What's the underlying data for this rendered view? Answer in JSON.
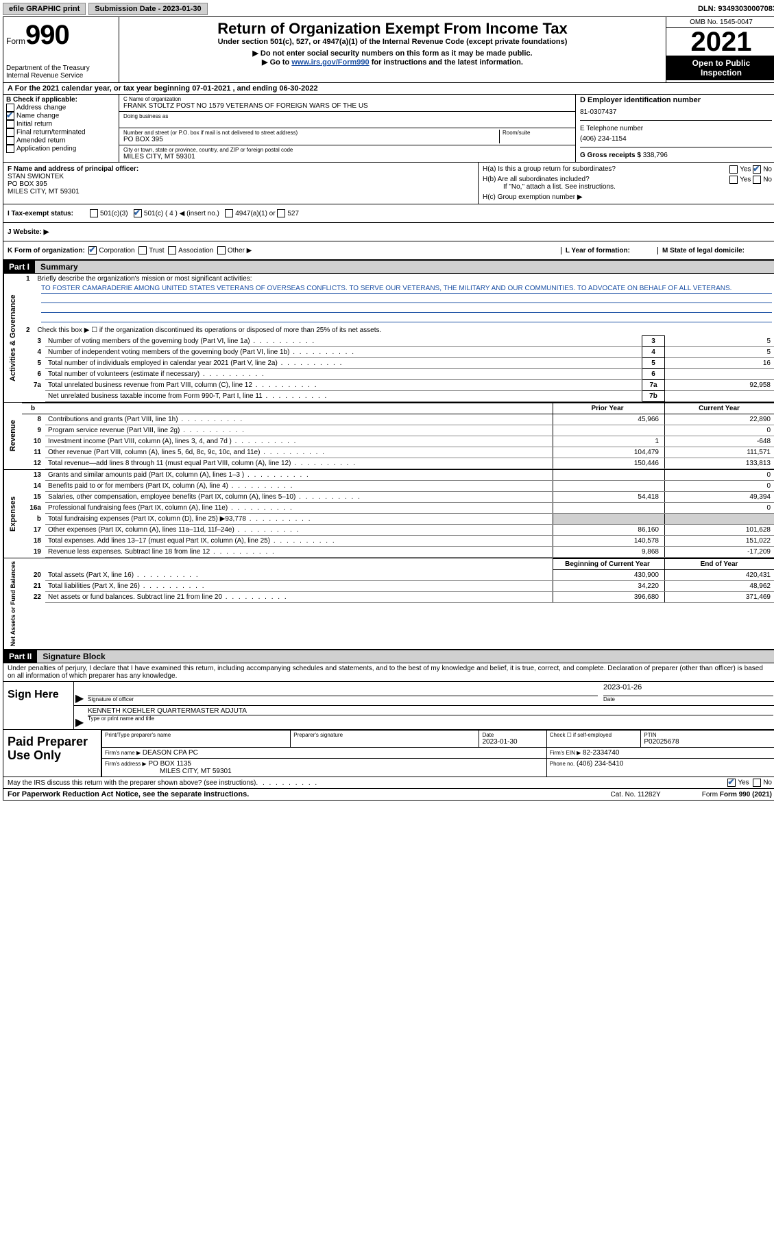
{
  "topbar": {
    "efile": "efile GRAPHIC print",
    "submission": "Submission Date - 2023-01-30",
    "dln": "DLN: 93493030007083"
  },
  "header": {
    "form_word": "Form",
    "form_no": "990",
    "title": "Return of Organization Exempt From Income Tax",
    "subtitle": "Under section 501(c), 527, or 4947(a)(1) of the Internal Revenue Code (except private foundations)",
    "instr1": "▶ Do not enter social security numbers on this form as it may be made public.",
    "instr2_pre": "▶ Go to ",
    "instr2_link": "www.irs.gov/Form990",
    "instr2_post": " for instructions and the latest information.",
    "dept": "Department of the Treasury",
    "irs": "Internal Revenue Service",
    "omb": "OMB No. 1545-0047",
    "year": "2021",
    "open1": "Open to Public",
    "open2": "Inspection"
  },
  "row_a": "A For the 2021 calendar year, or tax year beginning 07-01-2021    , and ending 06-30-2022",
  "col_b": {
    "label": "B Check if applicable:",
    "items": [
      "Address change",
      "Name change",
      "Initial return",
      "Final return/terminated",
      "Amended return",
      "Application pending"
    ],
    "checked_idx": 1
  },
  "col_c": {
    "name_label": "C Name of organization",
    "name": "FRANK STOLTZ POST NO 1579 VETERANS OF FOREIGN WARS OF THE US",
    "dba_label": "Doing business as",
    "addr_label": "Number and street (or P.O. box if mail is not delivered to street address)",
    "room_label": "Room/suite",
    "addr": "PO BOX 395",
    "city_label": "City or town, state or province, country, and ZIP or foreign postal code",
    "city": "MILES CITY, MT  59301"
  },
  "col_d": {
    "ein_label": "D Employer identification number",
    "ein": "81-0307437",
    "tel_label": "E Telephone number",
    "tel": "(406) 234-1154",
    "gross_label": "G Gross receipts $",
    "gross": "338,796"
  },
  "section_f": {
    "label": "F Name and address of principal officer:",
    "name": "STAN SWIONTEK",
    "addr1": "PO BOX 395",
    "addr2": "MILES CITY, MT  59301"
  },
  "section_h": {
    "ha": "H(a)  Is this a group return for subordinates?",
    "hb": "H(b)  Are all subordinates included?",
    "hnote": "If \"No,\" attach a list. See instructions.",
    "hc": "H(c)  Group exemption number ▶",
    "yes": "Yes",
    "no": "No"
  },
  "row_i": {
    "label": "I   Tax-exempt status:",
    "opt1": "501(c)(3)",
    "opt2": "501(c) ( 4 ) ◀ (insert no.)",
    "opt3": "4947(a)(1) or",
    "opt4": "527"
  },
  "row_j": "J   Website: ▶",
  "row_k": {
    "label": "K Form of organization:",
    "opts": [
      "Corporation",
      "Trust",
      "Association",
      "Other ▶"
    ],
    "l": "L Year of formation:",
    "m": "M State of legal domicile:"
  },
  "part1": {
    "tag": "Part I",
    "title": "Summary",
    "q1": "Briefly describe the organization's mission or most significant activities:",
    "mission": "TO FOSTER CAMARADERIE AMONG UNITED STATES VETERANS OF OVERSEAS CONFLICTS. TO SERVE OUR VETERANS, THE MILITARY AND OUR COMMUNITIES. TO ADVOCATE ON BEHALF OF ALL VETERANS.",
    "q2": "Check this box ▶ ☐ if the organization discontinued its operations or disposed of more than 25% of its net assets.",
    "lines_top": [
      {
        "n": "3",
        "d": "Number of voting members of the governing body (Part VI, line 1a)",
        "box": "3",
        "v": "5"
      },
      {
        "n": "4",
        "d": "Number of independent voting members of the governing body (Part VI, line 1b)",
        "box": "4",
        "v": "5"
      },
      {
        "n": "5",
        "d": "Total number of individuals employed in calendar year 2021 (Part V, line 2a)",
        "box": "5",
        "v": "16"
      },
      {
        "n": "6",
        "d": "Total number of volunteers (estimate if necessary)",
        "box": "6",
        "v": ""
      },
      {
        "n": "7a",
        "d": "Total unrelated business revenue from Part VIII, column (C), line 12",
        "box": "7a",
        "v": "92,958"
      },
      {
        "n": "",
        "d": "Net unrelated business taxable income from Form 990-T, Part I, line 11",
        "box": "7b",
        "v": ""
      }
    ],
    "col_hdr_prior": "Prior Year",
    "col_hdr_curr": "Current Year",
    "revenue": [
      {
        "n": "8",
        "d": "Contributions and grants (Part VIII, line 1h)",
        "p": "45,966",
        "c": "22,890"
      },
      {
        "n": "9",
        "d": "Program service revenue (Part VIII, line 2g)",
        "p": "",
        "c": "0"
      },
      {
        "n": "10",
        "d": "Investment income (Part VIII, column (A), lines 3, 4, and 7d )",
        "p": "1",
        "c": "-648"
      },
      {
        "n": "11",
        "d": "Other revenue (Part VIII, column (A), lines 5, 6d, 8c, 9c, 10c, and 11e)",
        "p": "104,479",
        "c": "111,571"
      },
      {
        "n": "12",
        "d": "Total revenue—add lines 8 through 11 (must equal Part VIII, column (A), line 12)",
        "p": "150,446",
        "c": "133,813"
      }
    ],
    "expenses": [
      {
        "n": "13",
        "d": "Grants and similar amounts paid (Part IX, column (A), lines 1–3 )",
        "p": "",
        "c": "0"
      },
      {
        "n": "14",
        "d": "Benefits paid to or for members (Part IX, column (A), line 4)",
        "p": "",
        "c": "0"
      },
      {
        "n": "15",
        "d": "Salaries, other compensation, employee benefits (Part IX, column (A), lines 5–10)",
        "p": "54,418",
        "c": "49,394"
      },
      {
        "n": "16a",
        "d": "Professional fundraising fees (Part IX, column (A), line 11e)",
        "p": "",
        "c": "0"
      },
      {
        "n": "b",
        "d": "Total fundraising expenses (Part IX, column (D), line 25) ▶93,778",
        "p": "GREY",
        "c": "GREY"
      },
      {
        "n": "17",
        "d": "Other expenses (Part IX, column (A), lines 11a–11d, 11f–24e)",
        "p": "86,160",
        "c": "101,628"
      },
      {
        "n": "18",
        "d": "Total expenses. Add lines 13–17 (must equal Part IX, column (A), line 25)",
        "p": "140,578",
        "c": "151,022"
      },
      {
        "n": "19",
        "d": "Revenue less expenses. Subtract line 18 from line 12",
        "p": "9,868",
        "c": "-17,209"
      }
    ],
    "col_hdr_begin": "Beginning of Current Year",
    "col_hdr_end": "End of Year",
    "netassets": [
      {
        "n": "20",
        "d": "Total assets (Part X, line 16)",
        "p": "430,900",
        "c": "420,431"
      },
      {
        "n": "21",
        "d": "Total liabilities (Part X, line 26)",
        "p": "34,220",
        "c": "48,962"
      },
      {
        "n": "22",
        "d": "Net assets or fund balances. Subtract line 21 from line 20",
        "p": "396,680",
        "c": "371,469"
      }
    ],
    "side_act": "Activities & Governance",
    "side_rev": "Revenue",
    "side_exp": "Expenses",
    "side_net": "Net Assets or Fund Balances"
  },
  "part2": {
    "tag": "Part II",
    "title": "Signature Block",
    "penalty": "Under penalties of perjury, I declare that I have examined this return, including accompanying schedules and statements, and to the best of my knowledge and belief, it is true, correct, and complete. Declaration of preparer (other than officer) is based on all information of which preparer has any knowledge.",
    "sign_here": "Sign Here",
    "sig_officer": "Signature of officer",
    "date": "Date",
    "sig_date": "2023-01-26",
    "typed": "KENNETH KOEHLER QUARTERMASTER ADJUTA",
    "typed_label": "Type or print name and title",
    "paid": "Paid Preparer Use Only",
    "pp_name": "Print/Type preparer's name",
    "pp_sig": "Preparer's signature",
    "pp_date_lbl": "Date",
    "pp_date": "2023-01-30",
    "pp_check": "Check ☐ if self-employed",
    "ptin_lbl": "PTIN",
    "ptin": "P02025678",
    "firm_name_lbl": "Firm's name     ▶",
    "firm_name": "DEASON CPA PC",
    "firm_ein_lbl": "Firm's EIN ▶",
    "firm_ein": "82-2334740",
    "firm_addr_lbl": "Firm's address ▶",
    "firm_addr1": "PO BOX 1135",
    "firm_addr2": "MILES CITY, MT  59301",
    "phone_lbl": "Phone no.",
    "phone": "(406) 234-5410",
    "may_irs": "May the IRS discuss this return with the preparer shown above? (see instructions)",
    "yes": "Yes",
    "no": "No"
  },
  "footer": {
    "pra": "For Paperwork Reduction Act Notice, see the separate instructions.",
    "cat": "Cat. No. 11282Y",
    "form": "Form 990 (2021)"
  }
}
